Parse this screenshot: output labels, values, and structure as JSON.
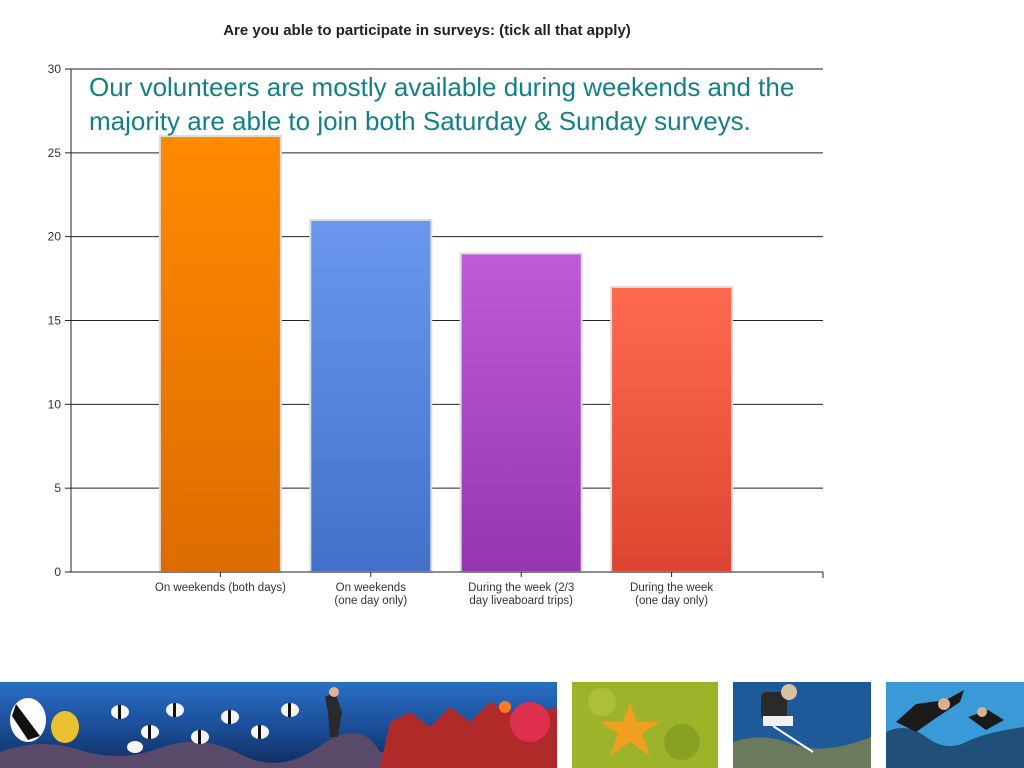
{
  "callout": {
    "text": "Our volunteers are mostly available during weekends and the majority are able to join both Saturday & Sunday surveys."
  },
  "chart_data": {
    "type": "bar",
    "title": "Are you able to participate in surveys: (tick all that apply)",
    "xlabel": "",
    "ylabel": "",
    "ylim": [
      0,
      30
    ],
    "yticks": [
      0,
      5,
      10,
      15,
      20,
      25,
      30
    ],
    "grid": true,
    "categories": [
      [
        "On weekends (both days)"
      ],
      [
        "On weekends",
        "(one day only)"
      ],
      [
        "During the week (2/3",
        "day liveaboard trips)"
      ],
      [
        "During the week",
        "(one day only)"
      ]
    ],
    "values": [
      26,
      21,
      19,
      17
    ],
    "colors": [
      [
        "#ff8a00",
        "#dd6c00"
      ],
      [
        "#6b98ee",
        "#4370c9"
      ],
      [
        "#c05ad8",
        "#9635b0"
      ],
      [
        "#ff6a4f",
        "#dd4530"
      ]
    ]
  },
  "photos": [
    {
      "name": "reef-fish-panorama-photo"
    },
    {
      "name": "starfish-photo"
    },
    {
      "name": "diver-survey-photo"
    },
    {
      "name": "divers-reef-photo"
    }
  ]
}
